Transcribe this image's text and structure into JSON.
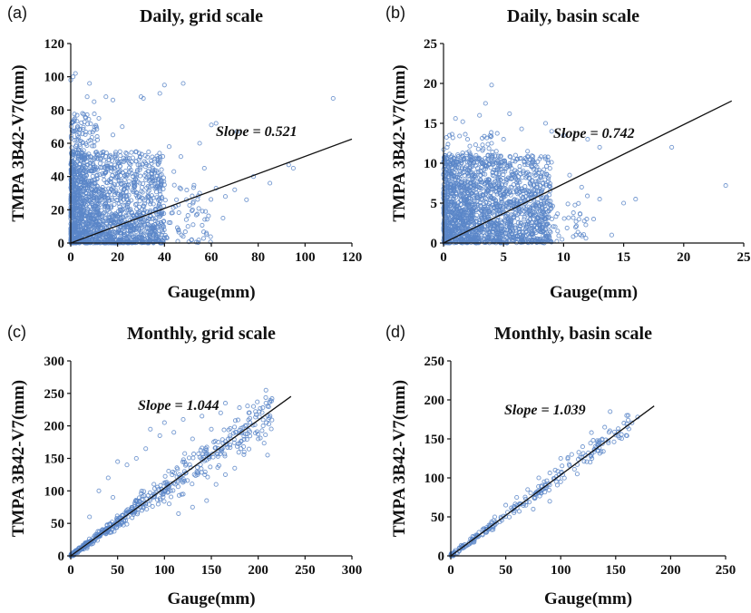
{
  "chart_data": [
    {
      "panel_label": "(a)",
      "type": "scatter",
      "title": "Daily, grid scale",
      "xlabel": "Gauge(mm)",
      "ylabel": "TMPA 3B42-V7(mm)",
      "xlim": [
        0,
        120
      ],
      "ylim": [
        0,
        120
      ],
      "xticks": [
        "0",
        "20",
        "40",
        "60",
        "80",
        "100",
        "120"
      ],
      "yticks": [
        "0",
        "20",
        "40",
        "60",
        "80",
        "100",
        "120"
      ],
      "slope_label": "Slope = 0.521",
      "slope": 0.521,
      "fit_x": [
        0,
        120
      ],
      "marker_color": "#5b86c8",
      "points": [
        [
          0,
          98
        ],
        [
          1,
          100
        ],
        [
          2,
          102
        ],
        [
          7,
          88
        ],
        [
          8,
          96
        ],
        [
          10,
          85
        ],
        [
          15,
          88
        ],
        [
          18,
          86
        ],
        [
          30,
          88
        ],
        [
          31,
          87
        ],
        [
          40,
          95
        ],
        [
          48,
          96
        ],
        [
          38,
          90
        ],
        [
          60,
          71
        ],
        [
          62,
          72
        ],
        [
          71,
          67
        ],
        [
          112,
          87
        ],
        [
          93,
          47
        ],
        [
          95,
          45
        ],
        [
          78,
          40
        ],
        [
          57,
          45
        ],
        [
          47,
          52
        ],
        [
          44,
          43
        ],
        [
          85,
          36
        ],
        [
          65,
          15
        ],
        [
          50,
          10
        ],
        [
          46,
          8
        ],
        [
          48,
          4
        ],
        [
          52,
          20
        ],
        [
          55,
          30
        ],
        [
          62,
          33
        ],
        [
          66,
          28
        ],
        [
          70,
          32
        ],
        [
          75,
          26
        ],
        [
          58,
          5
        ],
        [
          43,
          18
        ],
        [
          40,
          35
        ],
        [
          35,
          45
        ],
        [
          28,
          55
        ],
        [
          22,
          70
        ],
        [
          18,
          65
        ],
        [
          12,
          75
        ],
        [
          5,
          78
        ],
        [
          3,
          70
        ],
        [
          20,
          42
        ],
        [
          25,
          48
        ],
        [
          32,
          38
        ],
        [
          36,
          20
        ],
        [
          30,
          6
        ],
        [
          26,
          15
        ],
        [
          55,
          60
        ],
        [
          42,
          58
        ]
      ],
      "dense": [
        {
          "n": 1400,
          "xmax": 40,
          "ymax": 55,
          "skew": 1.6
        },
        {
          "n": 250,
          "xmax": 12,
          "ymax": 78,
          "skew": 1.2
        },
        {
          "n": 220,
          "xmax": 60,
          "ymax": 35,
          "skew": 1.4
        }
      ]
    },
    {
      "panel_label": "(b)",
      "type": "scatter",
      "title": "Daily, basin scale",
      "xlabel": "Gauge(mm)",
      "ylabel": "TMPA 3B42-V7(mm)",
      "xlim": [
        0,
        25
      ],
      "ylim": [
        0,
        25
      ],
      "xticks": [
        "0",
        "5",
        "10",
        "15",
        "20",
        "25"
      ],
      "yticks": [
        "0",
        "5",
        "10",
        "15",
        "20",
        "25"
      ],
      "slope_label": "Slope = 0.742",
      "slope": 0.742,
      "fit_x": [
        0,
        24
      ],
      "marker_color": "#5b86c8",
      "points": [
        [
          4,
          19.8
        ],
        [
          3.5,
          17.5
        ],
        [
          3,
          16
        ],
        [
          1,
          15.6
        ],
        [
          1.6,
          15.2
        ],
        [
          5.5,
          16.2
        ],
        [
          6.5,
          14.3
        ],
        [
          8.5,
          15
        ],
        [
          9,
          14
        ],
        [
          10,
          13.5
        ],
        [
          12,
          13
        ],
        [
          13,
          12
        ],
        [
          19,
          12
        ],
        [
          23.5,
          7.2
        ],
        [
          16,
          5.5
        ],
        [
          15,
          5
        ],
        [
          13,
          5.5
        ],
        [
          11.5,
          7
        ],
        [
          10.5,
          8.5
        ],
        [
          12.5,
          3
        ],
        [
          11,
          2
        ],
        [
          9.5,
          1.5
        ],
        [
          14,
          1
        ],
        [
          2,
          13
        ],
        [
          0.5,
          13.5
        ],
        [
          0.3,
          12
        ],
        [
          5,
          13
        ],
        [
          7,
          11.5
        ],
        [
          4,
          12.5
        ]
      ],
      "dense": [
        {
          "n": 1500,
          "xmax": 9,
          "ymax": 11,
          "skew": 1.3
        },
        {
          "n": 250,
          "xmax": 5,
          "ymax": 14,
          "skew": 1.2
        },
        {
          "n": 150,
          "xmax": 12,
          "ymax": 6,
          "skew": 1.2
        }
      ]
    },
    {
      "panel_label": "(c)",
      "type": "scatter",
      "title": "Monthly, grid scale",
      "xlabel": "Gauge(mm)",
      "ylabel": "TMPA 3B42-V7(mm)",
      "xlim": [
        0,
        300
      ],
      "ylim": [
        0,
        300
      ],
      "xticks": [
        "0",
        "50",
        "100",
        "150",
        "200",
        "250",
        "300"
      ],
      "yticks": [
        "0",
        "50",
        "100",
        "150",
        "200",
        "250",
        "300"
      ],
      "slope_label": "Slope = 1.044",
      "slope": 1.044,
      "fit_x": [
        0,
        235
      ],
      "marker_color": "#5b86c8",
      "points": [
        [
          85,
          195
        ],
        [
          100,
          205
        ],
        [
          120,
          210
        ],
        [
          140,
          215
        ],
        [
          160,
          220
        ],
        [
          165,
          235
        ],
        [
          180,
          228
        ],
        [
          190,
          220
        ],
        [
          195,
          230
        ],
        [
          205,
          228
        ],
        [
          210,
          155
        ],
        [
          200,
          180
        ],
        [
          185,
          160
        ],
        [
          170,
          185
        ],
        [
          150,
          195
        ],
        [
          130,
          180
        ],
        [
          110,
          190
        ],
        [
          95,
          185
        ],
        [
          80,
          165
        ],
        [
          70,
          150
        ],
        [
          60,
          140
        ],
        [
          50,
          145
        ],
        [
          40,
          120
        ],
        [
          45,
          90
        ],
        [
          30,
          100
        ],
        [
          20,
          60
        ],
        [
          155,
          110
        ],
        [
          165,
          125
        ],
        [
          175,
          135
        ],
        [
          145,
          85
        ],
        [
          130,
          75
        ],
        [
          115,
          65
        ],
        [
          120,
          95
        ],
        [
          105,
          80
        ]
      ],
      "band": {
        "n": 520,
        "xmax": 215,
        "slope": 1.044,
        "spread": 0.28,
        "skew": 1.5
      }
    },
    {
      "panel_label": "(d)",
      "type": "scatter",
      "title": "Monthly, basin scale",
      "xlabel": "Gauge(mm)",
      "ylabel": "TMPA 3B42-V7(mm)",
      "xlim": [
        0,
        250
      ],
      "ylim": [
        0,
        250
      ],
      "xticks": [
        "0",
        "50",
        "100",
        "150",
        "200",
        "250"
      ],
      "yticks": [
        "0",
        "50",
        "100",
        "150",
        "200",
        "250"
      ],
      "slope_label": "Slope = 1.039",
      "slope": 1.039,
      "fit_x": [
        0,
        185
      ],
      "marker_color": "#5b86c8",
      "points": [
        [
          128,
          158
        ],
        [
          140,
          165
        ],
        [
          145,
          185
        ],
        [
          150,
          155
        ],
        [
          160,
          180
        ],
        [
          170,
          178
        ],
        [
          135,
          145
        ],
        [
          120,
          140
        ],
        [
          110,
          130
        ],
        [
          100,
          125
        ],
        [
          95,
          110
        ],
        [
          85,
          95
        ],
        [
          80,
          100
        ],
        [
          70,
          85
        ],
        [
          60,
          75
        ],
        [
          50,
          65
        ],
        [
          40,
          50
        ],
        [
          30,
          35
        ],
        [
          20,
          25
        ],
        [
          10,
          12
        ],
        [
          115,
          105
        ],
        [
          100,
          95
        ],
        [
          90,
          70
        ],
        [
          75,
          60
        ]
      ],
      "band": {
        "n": 230,
        "xmax": 168,
        "slope": 1.039,
        "spread": 0.14,
        "skew": 1.4
      }
    }
  ]
}
